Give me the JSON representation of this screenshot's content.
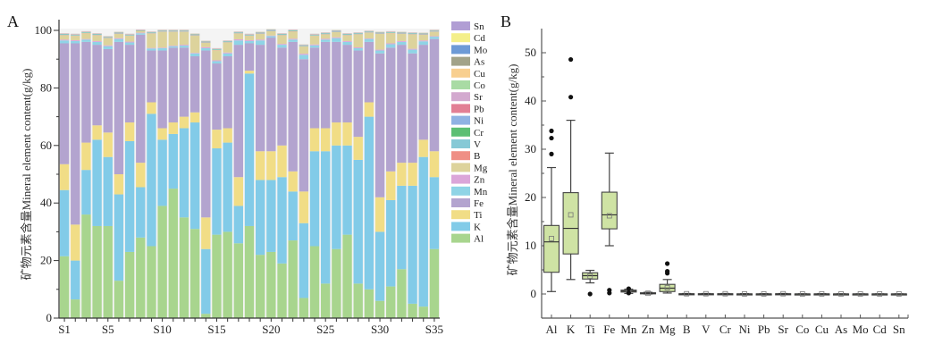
{
  "chart_data": [
    {
      "type": "bar",
      "stacked": true,
      "panel_label": "A",
      "title": "",
      "xlabel": "",
      "ylabel": "矿物元素含量Mineral element content(g/kg)",
      "ylim": [
        0,
        100
      ],
      "yticks": [
        0,
        20,
        40,
        60,
        80,
        100
      ],
      "categories": [
        "S1",
        "S2",
        "S3",
        "S4",
        "S5",
        "S6",
        "S7",
        "S8",
        "S9",
        "S10",
        "S11",
        "S12",
        "S13",
        "S14",
        "S15",
        "S16",
        "S17",
        "S18",
        "S19",
        "S20",
        "S21",
        "S22",
        "S23",
        "S24",
        "S25",
        "S26",
        "S27",
        "S28",
        "S29",
        "S30",
        "S31",
        "S32",
        "S33",
        "S34",
        "S35"
      ],
      "xtick_labels": [
        "S1",
        "S5",
        "S10",
        "S15",
        "S20",
        "S25",
        "S30",
        "S35"
      ],
      "legend_placement": "right",
      "legend_order": [
        "Sn",
        "Cd",
        "Mo",
        "As",
        "Cu",
        "Co",
        "Sr",
        "Pb",
        "Ni",
        "Cr",
        "V",
        "B",
        "Mg",
        "Zn",
        "Mn",
        "Fe",
        "Ti",
        "K",
        "Al"
      ],
      "colors": {
        "Al": "#a8d58e",
        "K": "#82cbe8",
        "Ti": "#f1dd86",
        "Fe": "#b3a4cf",
        "Mn": "#8fd4e6",
        "Zn": "#dba6d9",
        "Mg": "#ddd39c",
        "B": "#ef8f85",
        "V": "#86c9d6",
        "Cr": "#5cbf74",
        "Ni": "#8fb2e3",
        "Pb": "#e27f95",
        "Sr": "#d3a9cf",
        "Co": "#a9dba4",
        "Cu": "#f8cf8f",
        "As": "#a2a389",
        "Mo": "#6d9ad6",
        "Cd": "#f4ef8a",
        "Sn": "#b19ed4"
      },
      "series": [
        {
          "name": "Al",
          "values": [
            21.5,
            6.5,
            36,
            32,
            32,
            13,
            23,
            28,
            25,
            39,
            45,
            35,
            31,
            1.5,
            29,
            30,
            26,
            32,
            22,
            23,
            19,
            27,
            7,
            25,
            12,
            24,
            29,
            12,
            10,
            6,
            11,
            17,
            5,
            4,
            24
          ]
        },
        {
          "name": "K",
          "values": [
            23,
            13.5,
            15.5,
            30,
            24,
            30,
            38.5,
            17.5,
            46,
            23,
            19,
            31,
            37,
            22.5,
            30,
            31,
            13,
            53,
            26,
            25,
            30,
            17,
            26,
            33,
            46,
            36,
            31,
            43,
            60,
            24,
            30,
            29,
            41,
            52,
            25
          ]
        },
        {
          "name": "Ti",
          "values": [
            9,
            12.5,
            9.5,
            5,
            8.5,
            7,
            6.5,
            8.5,
            4,
            4,
            4,
            4,
            3.5,
            11,
            6.5,
            5,
            10,
            1,
            10,
            10,
            11,
            7,
            11,
            8,
            8,
            8,
            8,
            8,
            5,
            12,
            10,
            8,
            8,
            6,
            9
          ]
        },
        {
          "name": "Fe",
          "values": [
            42,
            63,
            35,
            28,
            29,
            46,
            27,
            44.5,
            18,
            27,
            26,
            24,
            19.5,
            58,
            23,
            25,
            46,
            9.5,
            37,
            39.5,
            34,
            45,
            46,
            28,
            30,
            28,
            27,
            30,
            21,
            50,
            43,
            41,
            38,
            33,
            39
          ]
        },
        {
          "name": "Mn",
          "values": [
            1,
            0.8,
            0.8,
            1,
            1,
            1,
            0.8,
            0.5,
            0.7,
            0.8,
            0.5,
            0.7,
            1,
            0.8,
            0.8,
            1,
            1.5,
            0.8,
            1.5,
            0.5,
            1,
            0.8,
            1.5,
            0.8,
            0.8,
            1.3,
            1,
            0.8,
            1,
            1,
            1.2,
            1,
            1.3,
            1.2,
            0.8
          ]
        },
        {
          "name": "Zn",
          "values": [
            0.3,
            0.3,
            0.2,
            0.3,
            0.3,
            0.3,
            0.3,
            0.2,
            0.2,
            0.2,
            0.2,
            0.3,
            0.2,
            0.4,
            0.3,
            0.3,
            0.4,
            0.3,
            0.3,
            0.2,
            0.3,
            0.3,
            0.4,
            0.3,
            0.3,
            0.3,
            0.3,
            0.3,
            0.2,
            0.3,
            0.3,
            0.3,
            0.3,
            0.3,
            0.2
          ]
        },
        {
          "name": "Mg",
          "values": [
            1.5,
            1.5,
            2,
            2,
            2.5,
            1.5,
            2,
            0.5,
            5,
            5.5,
            4.8,
            4.5,
            6,
            1.5,
            3.5,
            3.5,
            2,
            1.5,
            2,
            1.5,
            3,
            2.5,
            2.5,
            3,
            1.5,
            1.8,
            2,
            4.5,
            2,
            5.5,
            3.5,
            2.5,
            5,
            2,
            1.5
          ]
        },
        {
          "name": "B",
          "values": [
            0.1,
            0.1,
            0.1,
            0.1,
            0.1,
            0.1,
            0.1,
            0.1,
            0.1,
            0.1,
            0.1,
            0.1,
            0.1,
            0.1,
            0.1,
            0.1,
            0.1,
            0.1,
            0.1,
            0.1,
            0.1,
            0.1,
            0.1,
            0.1,
            0.1,
            0.1,
            0.1,
            0.1,
            0.1,
            0.1,
            0.1,
            0.1,
            0.1,
            0.1,
            0.1
          ]
        },
        {
          "name": "V",
          "values": [
            0.2,
            0.2,
            0.2,
            0.2,
            0.2,
            0.2,
            0.2,
            0.1,
            0.2,
            0.2,
            0.2,
            0.2,
            0.2,
            0.2,
            0.2,
            0.2,
            0.2,
            0.2,
            0.2,
            0.2,
            0.2,
            0.2,
            0.2,
            0.2,
            0.2,
            0.2,
            0.2,
            0.2,
            0.2,
            0.2,
            0.2,
            0.2,
            0.2,
            0.2,
            0.2
          ]
        },
        {
          "name": "Cr",
          "values": [
            0.1,
            0.1,
            0.1,
            0.1,
            0.1,
            0.1,
            0.1,
            0.1,
            0.1,
            0.1,
            0.1,
            0.1,
            0.1,
            0.1,
            0.1,
            0.1,
            0.1,
            0.1,
            0.1,
            0.1,
            0.1,
            0.1,
            0.1,
            0.1,
            0.1,
            0.1,
            0.1,
            0.1,
            0.1,
            0.1,
            0.1,
            0.1,
            0.1,
            0.1,
            0.1
          ]
        },
        {
          "name": "Ni",
          "values": [
            0.05,
            0.05,
            0.05,
            0.05,
            0.05,
            0.05,
            0.05,
            0.05,
            0.05,
            0.05,
            0.05,
            0.05,
            0.05,
            0.05,
            0.05,
            0.05,
            0.05,
            0.05,
            0.05,
            0.05,
            0.05,
            0.05,
            0.05,
            0.05,
            0.05,
            0.05,
            0.05,
            0.05,
            0.05,
            0.05,
            0.05,
            0.05,
            0.05,
            0.05,
            0.05
          ]
        },
        {
          "name": "Pb",
          "values": [
            0.05,
            0.05,
            0.05,
            0.05,
            0.05,
            0.05,
            0.05,
            0.05,
            0.05,
            0.05,
            0.05,
            0.05,
            0.05,
            0.05,
            0.05,
            0.05,
            0.05,
            0.05,
            0.05,
            0.05,
            0.05,
            0.05,
            0.05,
            0.05,
            0.05,
            0.05,
            0.05,
            0.05,
            0.05,
            0.05,
            0.05,
            0.05,
            0.05,
            0.05,
            0.05
          ]
        },
        {
          "name": "Sr",
          "values": [
            0.1,
            0.1,
            0.1,
            0.1,
            0.1,
            0.1,
            0.1,
            0.1,
            0.1,
            0.1,
            0.1,
            0.1,
            0.1,
            0.1,
            0.1,
            0.1,
            0.1,
            0.1,
            0.1,
            0.1,
            0.1,
            0.1,
            0.1,
            0.1,
            0.1,
            0.1,
            0.1,
            0.1,
            0.1,
            0.1,
            0.1,
            0.1,
            0.1,
            0.1,
            0.1
          ]
        },
        {
          "name": "Co",
          "values": [
            0.02,
            0.02,
            0.02,
            0.02,
            0.02,
            0.02,
            0.02,
            0.02,
            0.02,
            0.02,
            0.02,
            0.02,
            0.02,
            0.02,
            0.02,
            0.02,
            0.02,
            0.02,
            0.02,
            0.02,
            0.02,
            0.02,
            0.02,
            0.02,
            0.02,
            0.02,
            0.02,
            0.02,
            0.02,
            0.02,
            0.02,
            0.02,
            0.02,
            0.02,
            0.02
          ]
        },
        {
          "name": "Cu",
          "values": [
            0.05,
            0.05,
            0.05,
            0.05,
            0.05,
            0.05,
            0.05,
            0.05,
            0.05,
            0.05,
            0.05,
            0.05,
            0.05,
            0.05,
            0.05,
            0.05,
            0.05,
            0.05,
            0.05,
            0.05,
            0.05,
            0.05,
            0.05,
            0.05,
            0.05,
            0.05,
            0.05,
            0.05,
            0.05,
            0.05,
            0.05,
            0.05,
            0.05,
            0.05,
            0.05
          ]
        },
        {
          "name": "As",
          "values": [
            0.02,
            0.02,
            0.02,
            0.02,
            0.02,
            0.02,
            0.02,
            0.02,
            0.02,
            0.02,
            0.02,
            0.02,
            0.02,
            0.02,
            0.02,
            0.02,
            0.02,
            0.02,
            0.02,
            0.02,
            0.02,
            0.02,
            0.02,
            0.02,
            0.02,
            0.02,
            0.02,
            0.02,
            0.02,
            0.02,
            0.02,
            0.02,
            0.02,
            0.02,
            0.02
          ]
        },
        {
          "name": "Mo",
          "values": [
            0.01,
            0.01,
            0.01,
            0.01,
            0.01,
            0.01,
            0.01,
            0.01,
            0.01,
            0.01,
            0.01,
            0.01,
            0.01,
            0.01,
            0.01,
            0.01,
            0.01,
            0.01,
            0.01,
            0.01,
            0.01,
            0.01,
            0.01,
            0.01,
            0.01,
            0.01,
            0.01,
            0.01,
            0.01,
            0.01,
            0.01,
            0.01,
            0.01,
            0.01,
            0.01
          ]
        },
        {
          "name": "Cd",
          "values": [
            0.01,
            0.01,
            0.01,
            0.01,
            0.01,
            0.01,
            0.01,
            0.01,
            0.01,
            0.01,
            0.01,
            0.01,
            0.01,
            0.01,
            0.01,
            0.01,
            0.01,
            0.01,
            0.01,
            0.01,
            0.01,
            0.01,
            0.01,
            0.01,
            0.01,
            0.01,
            0.01,
            0.01,
            0.01,
            0.01,
            0.01,
            0.01,
            0.01,
            0.01,
            0.01
          ]
        },
        {
          "name": "Sn",
          "values": [
            0.01,
            0.01,
            0.01,
            0.01,
            0.01,
            0.01,
            0.01,
            0.01,
            0.01,
            0.01,
            0.01,
            0.01,
            0.01,
            0.01,
            0.01,
            0.01,
            0.01,
            0.01,
            0.01,
            0.01,
            0.01,
            0.01,
            0.01,
            0.01,
            0.01,
            0.01,
            0.01,
            0.01,
            0.01,
            0.01,
            0.01,
            0.01,
            0.01,
            0.01,
            0.01
          ]
        }
      ]
    },
    {
      "type": "box",
      "panel_label": "B",
      "title": "",
      "xlabel": "",
      "ylabel": "矿物元素含量Mineral element content(g/kg)",
      "ylim": [
        -5,
        55
      ],
      "yticks": [
        0,
        10,
        20,
        30,
        40,
        50
      ],
      "box_color": "#cfe3a4",
      "categories": [
        "Al",
        "K",
        "Ti",
        "Fe",
        "Mn",
        "Zn",
        "Mg",
        "B",
        "V",
        "Cr",
        "Ni",
        "Pb",
        "Sr",
        "Co",
        "Cu",
        "As",
        "Mo",
        "Cd",
        "Sn"
      ],
      "boxes": [
        {
          "name": "Al",
          "whisker_low": 0.5,
          "q1": 4.5,
          "median": 10.8,
          "q3": 14.2,
          "whisker_high": 26.2,
          "mean": 11.5,
          "outliers": [
            29,
            32.3,
            33.8
          ]
        },
        {
          "name": "K",
          "whisker_low": 3,
          "q1": 8.3,
          "median": 13.6,
          "q3": 21,
          "whisker_high": 36,
          "mean": 16.4,
          "outliers": [
            40.8,
            48.6
          ]
        },
        {
          "name": "Ti",
          "whisker_low": 2.3,
          "q1": 3.1,
          "median": 3.8,
          "q3": 4.4,
          "whisker_high": 4.9,
          "mean": 3.7,
          "outliers": [
            0
          ]
        },
        {
          "name": "Fe",
          "whisker_low": 10,
          "q1": 13.5,
          "median": 16.4,
          "q3": 21.1,
          "whisker_high": 29.2,
          "mean": 16.2,
          "outliers": [
            0.2,
            0.8
          ]
        },
        {
          "name": "Mn",
          "whisker_low": 0.1,
          "q1": 0.4,
          "median": 0.6,
          "q3": 0.8,
          "whisker_high": 1.0,
          "mean": 0.6,
          "outliers": [
            0.2,
            1.1
          ]
        },
        {
          "name": "Zn",
          "whisker_low": 0,
          "q1": 0.1,
          "median": 0.15,
          "q3": 0.25,
          "whisker_high": 0.35,
          "mean": 0.15,
          "outliers": []
        },
        {
          "name": "Mg",
          "whisker_low": 0.2,
          "q1": 0.5,
          "median": 1.2,
          "q3": 2.0,
          "whisker_high": 3.0,
          "mean": 1.3,
          "outliers": [
            4.3,
            4.7,
            6.3
          ]
        },
        {
          "name": "B",
          "whisker_low": 0,
          "q1": 0,
          "median": 0,
          "q3": 0.05,
          "whisker_high": 0.1,
          "mean": 0.05,
          "outliers": []
        },
        {
          "name": "V",
          "whisker_low": 0,
          "q1": 0,
          "median": 0,
          "q3": 0.05,
          "whisker_high": 0.1,
          "mean": 0.05,
          "outliers": []
        },
        {
          "name": "Cr",
          "whisker_low": 0,
          "q1": 0,
          "median": 0,
          "q3": 0.05,
          "whisker_high": 0.1,
          "mean": 0.05,
          "outliers": []
        },
        {
          "name": "Ni",
          "whisker_low": 0,
          "q1": 0,
          "median": 0,
          "q3": 0.02,
          "whisker_high": 0.05,
          "mean": 0.02,
          "outliers": []
        },
        {
          "name": "Pb",
          "whisker_low": 0,
          "q1": 0,
          "median": 0,
          "q3": 0.02,
          "whisker_high": 0.05,
          "mean": 0.02,
          "outliers": []
        },
        {
          "name": "Sr",
          "whisker_low": 0,
          "q1": 0,
          "median": 0,
          "q3": 0.05,
          "whisker_high": 0.1,
          "mean": 0.05,
          "outliers": []
        },
        {
          "name": "Co",
          "whisker_low": 0,
          "q1": 0,
          "median": 0,
          "q3": 0.01,
          "whisker_high": 0.02,
          "mean": 0.01,
          "outliers": []
        },
        {
          "name": "Cu",
          "whisker_low": 0,
          "q1": 0,
          "median": 0,
          "q3": 0.02,
          "whisker_high": 0.05,
          "mean": 0.02,
          "outliers": []
        },
        {
          "name": "As",
          "whisker_low": 0,
          "q1": 0,
          "median": 0,
          "q3": 0.01,
          "whisker_high": 0.02,
          "mean": 0.01,
          "outliers": []
        },
        {
          "name": "Mo",
          "whisker_low": 0,
          "q1": 0,
          "median": 0,
          "q3": 0.01,
          "whisker_high": 0.01,
          "mean": 0.01,
          "outliers": []
        },
        {
          "name": "Cd",
          "whisker_low": 0,
          "q1": 0,
          "median": 0,
          "q3": 0.01,
          "whisker_high": 0.01,
          "mean": 0.01,
          "outliers": []
        },
        {
          "name": "Sn",
          "whisker_low": 0,
          "q1": 0,
          "median": 0,
          "q3": 0.01,
          "whisker_high": 0.01,
          "mean": 0.01,
          "outliers": []
        }
      ]
    }
  ]
}
